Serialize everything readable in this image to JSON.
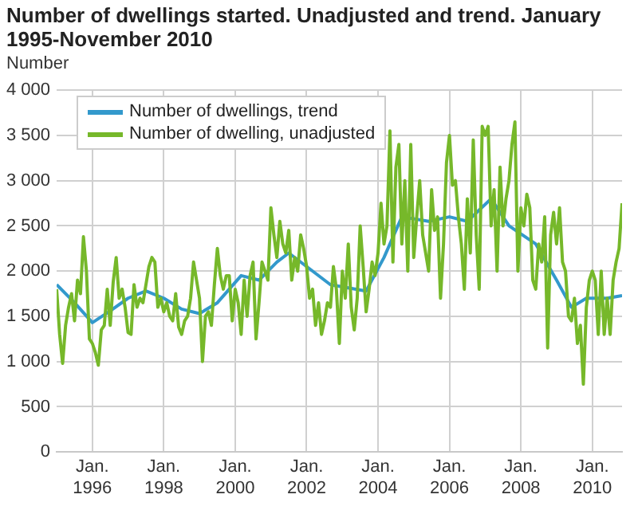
{
  "chart_data": {
    "type": "line",
    "title": "Number of dwellings started. Unadjusted and trend. January 1995-November 2010",
    "ylabel": "Number",
    "xlim": [
      "1995-01",
      "2010-11"
    ],
    "xticks": [
      {
        "value": "1996-01",
        "label": "Jan. 1996"
      },
      {
        "value": "1998-01",
        "label": "Jan. 1998"
      },
      {
        "value": "2000-01",
        "label": "Jan. 2000"
      },
      {
        "value": "2002-01",
        "label": "Jan. 2002"
      },
      {
        "value": "2004-01",
        "label": "Jan. 2004"
      },
      {
        "value": "2006-01",
        "label": "Jan. 2006"
      },
      {
        "value": "2008-01",
        "label": "Jan. 2008"
      },
      {
        "value": "2010-01",
        "label": "Jan. 2010"
      }
    ],
    "ylim": [
      0,
      4000
    ],
    "yticks": [
      0,
      500,
      {
        "value": 1000,
        "label": "1 000"
      },
      {
        "value": 1500,
        "label": "1 500"
      },
      {
        "value": 2000,
        "label": "2 000"
      },
      {
        "value": 2500,
        "label": "2 500"
      },
      {
        "value": 3000,
        "label": "3 000"
      },
      {
        "value": 3500,
        "label": "3 500"
      },
      {
        "value": 4000,
        "label": "4 000"
      }
    ],
    "grid": true,
    "legend": "top left",
    "marker": "none",
    "line_style": "solid",
    "series": [
      {
        "name": "Number of dwellings, trend",
        "color": "#3399cc",
        "x": [
          "1995-01",
          "1995-07",
          "1996-01",
          "1996-07",
          "1997-01",
          "1997-07",
          "1998-01",
          "1998-07",
          "1999-01",
          "1999-07",
          "2000-03",
          "2000-09",
          "2001-03",
          "2001-07",
          "2002-01",
          "2002-09",
          "2003-09",
          "2004-03",
          "2004-09",
          "2005-06",
          "2006-01",
          "2006-07",
          "2007-03",
          "2007-09",
          "2008-06",
          "2009-01",
          "2009-06",
          "2009-11",
          "2010-06",
          "2010-11"
        ],
        "values": [
          1850,
          1650,
          1430,
          1560,
          1700,
          1780,
          1700,
          1580,
          1530,
          1650,
          1950,
          1900,
          2100,
          2200,
          2050,
          1850,
          1780,
          2150,
          2600,
          2550,
          2600,
          2550,
          2800,
          2500,
          2300,
          1900,
          1600,
          1700,
          1700,
          1730
        ]
      },
      {
        "name": "Number of dwelling, unadjusted",
        "color": "#76b82a",
        "x": [
          "1995-01",
          "1995-02",
          "1995-03",
          "1995-04",
          "1995-05",
          "1995-06",
          "1995-07",
          "1995-08",
          "1995-09",
          "1995-10",
          "1995-11",
          "1995-12",
          "1996-01",
          "1996-02",
          "1996-03",
          "1996-04",
          "1996-05",
          "1996-06",
          "1996-07",
          "1996-08",
          "1996-09",
          "1996-10",
          "1996-11",
          "1996-12",
          "1997-01",
          "1997-02",
          "1997-03",
          "1997-04",
          "1997-05",
          "1997-06",
          "1997-07",
          "1997-08",
          "1997-09",
          "1997-10",
          "1997-11",
          "1997-12",
          "1998-01",
          "1998-02",
          "1998-03",
          "1998-04",
          "1998-05",
          "1998-06",
          "1998-07",
          "1998-08",
          "1998-09",
          "1998-10",
          "1998-11",
          "1998-12",
          "1999-01",
          "1999-02",
          "1999-03",
          "1999-04",
          "1999-05",
          "1999-06",
          "1999-07",
          "1999-08",
          "1999-09",
          "1999-10",
          "1999-11",
          "1999-12",
          "2000-01",
          "2000-02",
          "2000-03",
          "2000-04",
          "2000-05",
          "2000-06",
          "2000-07",
          "2000-08",
          "2000-09",
          "2000-10",
          "2000-11",
          "2000-12",
          "2001-01",
          "2001-02",
          "2001-03",
          "2001-04",
          "2001-05",
          "2001-06",
          "2001-07",
          "2001-08",
          "2001-09",
          "2001-10",
          "2001-11",
          "2001-12",
          "2002-01",
          "2002-02",
          "2002-03",
          "2002-04",
          "2002-05",
          "2002-06",
          "2002-07",
          "2002-08",
          "2002-09",
          "2002-10",
          "2002-11",
          "2002-12",
          "2003-01",
          "2003-02",
          "2003-03",
          "2003-04",
          "2003-05",
          "2003-06",
          "2003-07",
          "2003-08",
          "2003-09",
          "2003-10",
          "2003-11",
          "2003-12",
          "2004-01",
          "2004-02",
          "2004-03",
          "2004-04",
          "2004-05",
          "2004-06",
          "2004-07",
          "2004-08",
          "2004-09",
          "2004-10",
          "2004-11",
          "2004-12",
          "2005-01",
          "2005-02",
          "2005-03",
          "2005-04",
          "2005-05",
          "2005-06",
          "2005-07",
          "2005-08",
          "2005-09",
          "2005-10",
          "2005-11",
          "2005-12",
          "2006-01",
          "2006-02",
          "2006-03",
          "2006-04",
          "2006-05",
          "2006-06",
          "2006-07",
          "2006-08",
          "2006-09",
          "2006-10",
          "2006-11",
          "2006-12",
          "2007-01",
          "2007-02",
          "2007-03",
          "2007-04",
          "2007-05",
          "2007-06",
          "2007-07",
          "2007-08",
          "2007-09",
          "2007-10",
          "2007-11",
          "2007-12",
          "2008-01",
          "2008-02",
          "2008-03",
          "2008-04",
          "2008-05",
          "2008-06",
          "2008-07",
          "2008-08",
          "2008-09",
          "2008-10",
          "2008-11",
          "2008-12",
          "2009-01",
          "2009-02",
          "2009-03",
          "2009-04",
          "2009-05",
          "2009-06",
          "2009-07",
          "2009-08",
          "2009-09",
          "2009-10",
          "2009-11",
          "2009-12",
          "2010-01",
          "2010-02",
          "2010-03",
          "2010-04",
          "2010-05",
          "2010-06",
          "2010-07",
          "2010-08",
          "2010-09",
          "2010-10",
          "2010-11"
        ],
        "values": [
          1800,
          1300,
          980,
          1400,
          1600,
          1750,
          1450,
          1900,
          1750,
          2380,
          2000,
          1250,
          1200,
          1100,
          960,
          1350,
          1400,
          1800,
          1400,
          1880,
          2150,
          1700,
          1800,
          1600,
          1320,
          1300,
          1850,
          1600,
          1700,
          1650,
          1850,
          2050,
          2150,
          2100,
          1600,
          1700,
          1550,
          1650,
          1500,
          1450,
          1750,
          1380,
          1300,
          1450,
          1500,
          1700,
          2100,
          1900,
          1700,
          1000,
          1500,
          1550,
          1400,
          1850,
          2250,
          1950,
          1800,
          1950,
          1950,
          1450,
          1800,
          1650,
          1300,
          1900,
          1500,
          1950,
          2100,
          1250,
          1650,
          2100,
          2000,
          1900,
          2700,
          2400,
          2150,
          2550,
          2300,
          2200,
          2450,
          1900,
          2150,
          2000,
          2400,
          2250,
          2050,
          1700,
          1800,
          1400,
          1650,
          1300,
          1450,
          1650,
          1600,
          2050,
          1800,
          1200,
          2000,
          1700,
          2300,
          1600,
          1350,
          1700,
          2500,
          2050,
          1550,
          1800,
          2100,
          1950,
          2200,
          2750,
          2300,
          2500,
          3550,
          2100,
          3150,
          3400,
          2300,
          3000,
          2000,
          3400,
          2150,
          2600,
          3000,
          2400,
          2200,
          2000,
          2900,
          2450,
          2600,
          1700,
          2300,
          3200,
          3500,
          2950,
          3000,
          2600,
          2300,
          1800,
          2800,
          2200,
          3450,
          2400,
          1800,
          3600,
          3500,
          3600,
          2500,
          2900,
          2000,
          3150,
          2500,
          2800,
          3000,
          3400,
          3650,
          2000,
          2700,
          2500,
          2850,
          2700,
          1900,
          1800,
          2300,
          2100,
          2600,
          1150,
          2400,
          2650,
          2300,
          2700,
          2100,
          2000,
          1500,
          1450,
          1700,
          1200,
          1400,
          750,
          1600,
          1900,
          2000,
          1900,
          1300,
          2000,
          1300,
          1700,
          1300,
          1900,
          2100,
          2250,
          2750
        ]
      }
    ]
  }
}
